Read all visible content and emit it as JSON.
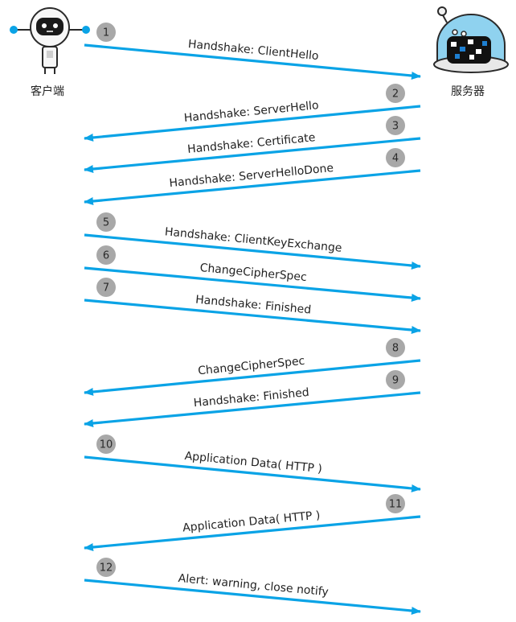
{
  "client": {
    "label": "客户端"
  },
  "server": {
    "label": "服务器"
  },
  "colors": {
    "arrow": "#0aa3e6",
    "badge": "#a8a8a8",
    "text": "#222222"
  },
  "messages": [
    {
      "step": "1",
      "label": "Handshake: ClientHello",
      "direction": "client-to-server"
    },
    {
      "step": "2",
      "label": "Handshake: ServerHello",
      "direction": "server-to-client"
    },
    {
      "step": "3",
      "label": "Handshake: Certificate",
      "direction": "server-to-client"
    },
    {
      "step": "4",
      "label": "Handshake: ServerHelloDone",
      "direction": "server-to-client"
    },
    {
      "step": "5",
      "label": "Handshake: ClientKeyExchange",
      "direction": "client-to-server"
    },
    {
      "step": "6",
      "label": "ChangeCipherSpec",
      "direction": "client-to-server"
    },
    {
      "step": "7",
      "label": "Handshake: Finished",
      "direction": "client-to-server"
    },
    {
      "step": "8",
      "label": "ChangeCipherSpec",
      "direction": "server-to-client"
    },
    {
      "step": "9",
      "label": "Handshake: Finished",
      "direction": "server-to-client"
    },
    {
      "step": "10",
      "label": "Application Data( HTTP )",
      "direction": "client-to-server"
    },
    {
      "step": "11",
      "label": "Application Data( HTTP )",
      "direction": "server-to-client"
    },
    {
      "step": "12",
      "label": "Alert: warning, close notify",
      "direction": "client-to-server"
    }
  ]
}
